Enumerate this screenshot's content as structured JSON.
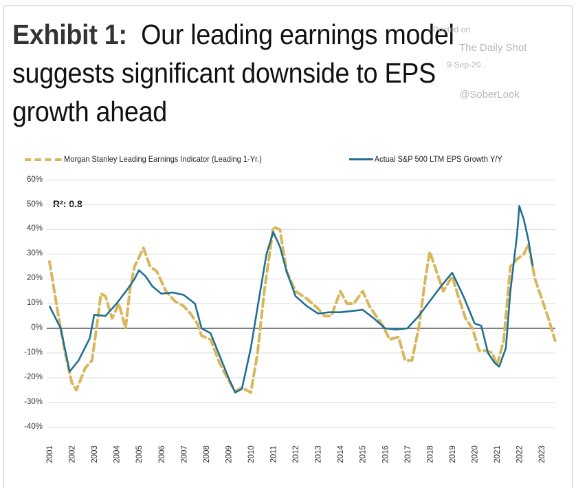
{
  "header": {
    "title_lead": "Exhibit 1:",
    "title_line1": "Our leading earnings model",
    "title_line2": "suggests significant downside to EPS",
    "title_line3": "growth ahead"
  },
  "watermark": {
    "line1": "Posted on",
    "line2": "The Daily Shot",
    "line3": "9-Sep-20..",
    "line4": "@SoberLook"
  },
  "colors": {
    "leading": "#d9b65a",
    "actual": "#1f6f94",
    "grid": "#e2e2e2",
    "zero": "#555555"
  },
  "chart_data": {
    "type": "line",
    "title": "Our leading earnings model suggests significant downside to EPS growth ahead",
    "xlabel": "",
    "ylabel": "",
    "xlim": [
      2001,
      2023.7
    ],
    "ylim": [
      -40,
      60
    ],
    "y_ticks": [
      -40,
      -30,
      -20,
      -10,
      0,
      10,
      20,
      30,
      40,
      50,
      60
    ],
    "y_tick_labels": [
      "-40%",
      "-30%",
      "-20%",
      "-10%",
      "0%",
      "10%",
      "20%",
      "30%",
      "40%",
      "50%",
      "60%"
    ],
    "x_tick_labels": [
      "2001",
      "2002",
      "2003",
      "2004",
      "2005",
      "2006",
      "2007",
      "2008",
      "2009",
      "2010",
      "2011",
      "2012",
      "2013",
      "2014",
      "2015",
      "2016",
      "2017",
      "2018",
      "2019",
      "2020",
      "2021",
      "2022",
      "2023"
    ],
    "grid": true,
    "legend_position": "top",
    "annotation": "R²: 0.8",
    "series": [
      {
        "name": "Morgan Stanley Leading Earnings Indicator (Leading 1-Yr.)",
        "style": "dashed",
        "points": [
          [
            2001.0,
            27
          ],
          [
            2001.4,
            5
          ],
          [
            2001.7,
            -10
          ],
          [
            2002.0,
            -22
          ],
          [
            2002.2,
            -25
          ],
          [
            2002.6,
            -16
          ],
          [
            2002.9,
            -13
          ],
          [
            2003.1,
            0
          ],
          [
            2003.3,
            14
          ],
          [
            2003.5,
            13
          ],
          [
            2003.8,
            4
          ],
          [
            2004.1,
            10
          ],
          [
            2004.4,
            0
          ],
          [
            2004.6,
            16
          ],
          [
            2004.8,
            25
          ],
          [
            2005.2,
            32.5
          ],
          [
            2005.5,
            25
          ],
          [
            2005.8,
            23
          ],
          [
            2006.2,
            15
          ],
          [
            2006.6,
            11
          ],
          [
            2007.0,
            9
          ],
          [
            2007.3,
            6
          ],
          [
            2007.6,
            2
          ],
          [
            2007.8,
            -3
          ],
          [
            2008.2,
            -4.5
          ],
          [
            2008.6,
            -14
          ],
          [
            2009.0,
            -21
          ],
          [
            2009.3,
            -25.5
          ],
          [
            2009.6,
            -24
          ],
          [
            2010.0,
            -26
          ],
          [
            2010.3,
            -10
          ],
          [
            2010.6,
            15
          ],
          [
            2010.9,
            34
          ],
          [
            2011.0,
            41
          ],
          [
            2011.3,
            40
          ],
          [
            2011.6,
            23
          ],
          [
            2012.0,
            15
          ],
          [
            2012.5,
            12
          ],
          [
            2013.0,
            8
          ],
          [
            2013.3,
            5
          ],
          [
            2013.6,
            5
          ],
          [
            2014.0,
            15
          ],
          [
            2014.3,
            10
          ],
          [
            2014.6,
            10
          ],
          [
            2015.0,
            15
          ],
          [
            2015.3,
            9
          ],
          [
            2015.6,
            5
          ],
          [
            2015.9,
            1
          ],
          [
            2016.2,
            -4.5
          ],
          [
            2016.6,
            -3.5
          ],
          [
            2016.9,
            -13
          ],
          [
            2017.2,
            -13
          ],
          [
            2017.5,
            0
          ],
          [
            2017.8,
            20
          ],
          [
            2018.0,
            31
          ],
          [
            2018.3,
            23
          ],
          [
            2018.6,
            15
          ],
          [
            2019.0,
            21
          ],
          [
            2019.3,
            12
          ],
          [
            2019.6,
            4
          ],
          [
            2019.9,
            0
          ],
          [
            2020.2,
            -9
          ],
          [
            2020.5,
            -9
          ],
          [
            2020.8,
            -10
          ],
          [
            2021.0,
            -15
          ],
          [
            2021.3,
            -5
          ],
          [
            2021.6,
            25
          ],
          [
            2021.9,
            28
          ],
          [
            2022.2,
            30
          ],
          [
            2022.4,
            34
          ],
          [
            2022.7,
            20
          ],
          [
            2023.0,
            12
          ],
          [
            2023.3,
            4
          ],
          [
            2023.6,
            -5
          ]
        ]
      },
      {
        "name": "Actual S&P 500 LTM EPS Growth Y/Y",
        "style": "solid",
        "points": [
          [
            2001.0,
            9
          ],
          [
            2001.5,
            0
          ],
          [
            2001.9,
            -17.5
          ],
          [
            2002.3,
            -13
          ],
          [
            2002.8,
            -4
          ],
          [
            2003.0,
            5.5
          ],
          [
            2003.5,
            5
          ],
          [
            2004.0,
            10
          ],
          [
            2004.5,
            16
          ],
          [
            2004.8,
            20
          ],
          [
            2005.0,
            23.5
          ],
          [
            2005.3,
            21
          ],
          [
            2005.6,
            17
          ],
          [
            2006.0,
            14
          ],
          [
            2006.5,
            14.5
          ],
          [
            2007.0,
            13.5
          ],
          [
            2007.5,
            10
          ],
          [
            2007.8,
            0
          ],
          [
            2008.2,
            -2
          ],
          [
            2008.6,
            -11
          ],
          [
            2009.0,
            -20
          ],
          [
            2009.3,
            -26
          ],
          [
            2009.6,
            -24.5
          ],
          [
            2010.0,
            -8
          ],
          [
            2010.4,
            14
          ],
          [
            2010.7,
            30
          ],
          [
            2011.0,
            39
          ],
          [
            2011.3,
            33
          ],
          [
            2011.6,
            23
          ],
          [
            2012.0,
            13
          ],
          [
            2012.5,
            9
          ],
          [
            2013.0,
            6
          ],
          [
            2013.5,
            6.5
          ],
          [
            2014.0,
            6.5
          ],
          [
            2014.5,
            7
          ],
          [
            2015.0,
            7.5
          ],
          [
            2015.5,
            4
          ],
          [
            2016.0,
            0
          ],
          [
            2016.5,
            -0.5
          ],
          [
            2017.0,
            0
          ],
          [
            2017.5,
            5
          ],
          [
            2018.0,
            11
          ],
          [
            2018.5,
            17
          ],
          [
            2019.0,
            22.5
          ],
          [
            2019.5,
            13
          ],
          [
            2020.0,
            2
          ],
          [
            2020.3,
            1
          ],
          [
            2020.6,
            -10
          ],
          [
            2020.9,
            -14
          ],
          [
            2021.1,
            -15.5
          ],
          [
            2021.4,
            -8
          ],
          [
            2021.6,
            15
          ],
          [
            2021.9,
            38
          ],
          [
            2022.0,
            49.5
          ],
          [
            2022.2,
            44
          ],
          [
            2022.4,
            36
          ],
          [
            2022.6,
            25
          ]
        ]
      }
    ]
  }
}
